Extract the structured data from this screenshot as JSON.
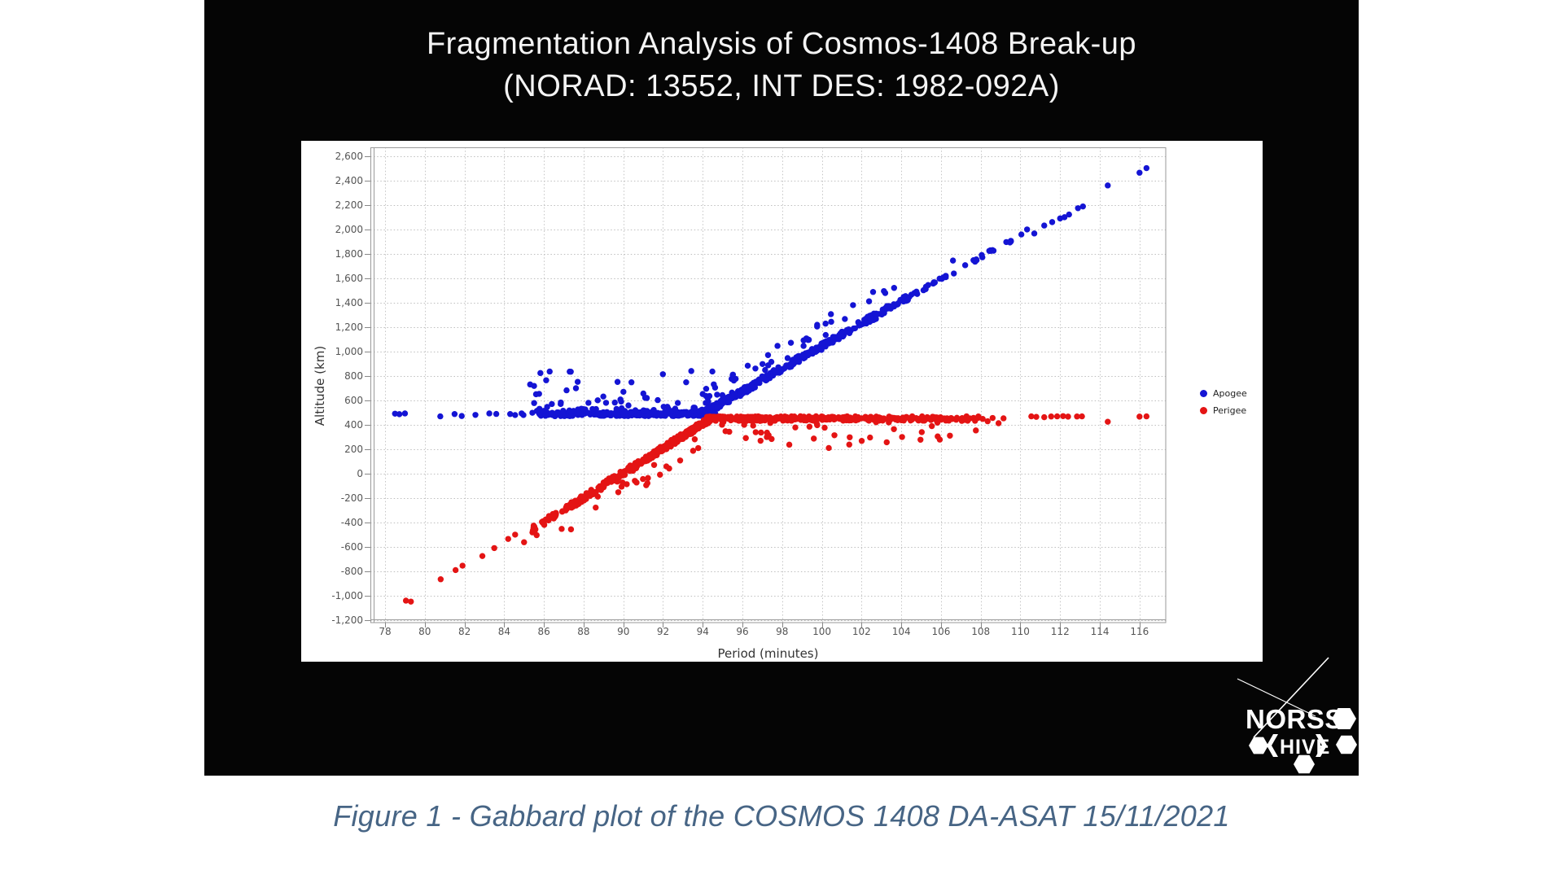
{
  "slide": {
    "background": "#050505",
    "title_line1": "Fragmentation Analysis of Cosmos-1408 Break-up",
    "title_line2": "(NORAD: 13552, INT DES: 1982-092A)",
    "title_color": "#f4f4f4"
  },
  "caption": {
    "text": "Figure 1 - Gabbard plot of the COSMOS 1408 DA-ASAT 15/11/2021",
    "color": "#476585"
  },
  "logo": {
    "line1": "NORSS",
    "line2": "HIVE"
  },
  "chart_data": {
    "type": "scatter",
    "title": "Fragmentation Analysis of Cosmos-1408 Break-up",
    "subtitle": "(NORAD: 13552, INT DES: 1982-092A)",
    "xlabel": "Period (minutes)",
    "ylabel": "Altitude (km)",
    "xlim": [
      77.26,
      117.32
    ],
    "ylim": [
      -1220,
      2670
    ],
    "x_ticks": [
      78,
      80,
      82,
      84,
      86,
      88,
      90,
      92,
      94,
      96,
      98,
      100,
      102,
      104,
      106,
      108,
      110,
      112,
      114,
      116
    ],
    "y_ticks": [
      2600,
      2400,
      2200,
      2000,
      1800,
      1600,
      1400,
      1200,
      1000,
      800,
      600,
      400,
      200,
      0,
      -200,
      -400,
      -600,
      -800,
      -1000,
      -1200
    ],
    "grid": "dotted",
    "grid_color": "#bfbfbf",
    "frame_color": "#9a9a9a",
    "tick_color": "#888888",
    "background": "#ffffff",
    "marker_radius": 3.7,
    "seed": 13552,
    "legend": {
      "position": "right",
      "entries": [
        {
          "label": "Apogee",
          "color": "#1414d4"
        },
        {
          "label": "Perigee",
          "color": "#e41414"
        }
      ]
    },
    "series": [
      {
        "name": "Apogee",
        "color": "#1414d4",
        "bands": [
          {
            "kind": "uniband",
            "p": [
              84.8,
              94.65
            ],
            "alt": 486,
            "spread": [
              -16,
              18
            ],
            "count": 300,
            "ramp": 1.6
          },
          {
            "kind": "scatter",
            "p": [
              85.3,
              94.9
            ],
            "alt": [
              512,
              870
            ],
            "count": 72,
            "bias": 2.6
          },
          {
            "kind": "line",
            "p": [
              94.15,
              104.3
            ],
            "alt0": 488,
            "slope": 92,
            "jb": 14,
            "ja": 48,
            "of": 0.13,
            "oe": 210,
            "dir": 1,
            "count": 400,
            "ramp": 0.62
          },
          {
            "kind": "line",
            "p": [
              104.3,
              110.4
            ],
            "alt0": 1422,
            "slope": 92,
            "jb": 10,
            "ja": 30,
            "of": 0.05,
            "oe": 80,
            "dir": 1,
            "count": 40,
            "ramp": 1
          }
        ],
        "points": [
          [
            78.5,
            490
          ],
          [
            78.72,
            486
          ],
          [
            79.0,
            492
          ],
          [
            80.78,
            468
          ],
          [
            81.5,
            487
          ],
          [
            81.86,
            471
          ],
          [
            82.55,
            480
          ],
          [
            83.25,
            492
          ],
          [
            83.6,
            488
          ],
          [
            84.3,
            487
          ],
          [
            84.55,
            479
          ],
          [
            110.7,
            1965
          ],
          [
            111.2,
            2030
          ],
          [
            111.6,
            2058
          ],
          [
            112.0,
            2088
          ],
          [
            112.22,
            2098
          ],
          [
            112.45,
            2120
          ],
          [
            112.9,
            2172
          ],
          [
            113.15,
            2186
          ],
          [
            114.4,
            2358
          ],
          [
            116.0,
            2462
          ],
          [
            116.35,
            2500
          ]
        ]
      },
      {
        "name": "Perigee",
        "color": "#e41414",
        "bands": [
          {
            "kind": "line",
            "p": [
              85.2,
              94.35
            ],
            "alt0": -460,
            "slope": 101,
            "jb": 50,
            "ja": 10,
            "of": 0.11,
            "oe": 230,
            "dir": -1,
            "count": 380,
            "ramp": 1.5
          },
          {
            "kind": "uniband",
            "p": [
              94.2,
              107.9
            ],
            "alt": 455,
            "spread": [
              -24,
              14
            ],
            "count": 380,
            "ramp": 0.75,
            "tail_frac": 0.1,
            "tail": 220
          }
        ],
        "points": [
          [
            79.05,
            -1040
          ],
          [
            79.3,
            -1048
          ],
          [
            80.8,
            -865
          ],
          [
            81.55,
            -790
          ],
          [
            81.9,
            -754
          ],
          [
            82.9,
            -675
          ],
          [
            83.5,
            -610
          ],
          [
            84.2,
            -535
          ],
          [
            84.55,
            -500
          ],
          [
            85.0,
            -562
          ],
          [
            108.1,
            447
          ],
          [
            108.35,
            428
          ],
          [
            108.6,
            455
          ],
          [
            108.9,
            412
          ],
          [
            109.15,
            452
          ],
          [
            110.55,
            468
          ],
          [
            110.8,
            464
          ],
          [
            111.2,
            461
          ],
          [
            111.55,
            467
          ],
          [
            111.85,
            468
          ],
          [
            112.15,
            470
          ],
          [
            112.4,
            466
          ],
          [
            112.85,
            467
          ],
          [
            113.1,
            468
          ],
          [
            114.4,
            424
          ],
          [
            116.0,
            466
          ],
          [
            116.35,
            468
          ]
        ]
      }
    ]
  }
}
